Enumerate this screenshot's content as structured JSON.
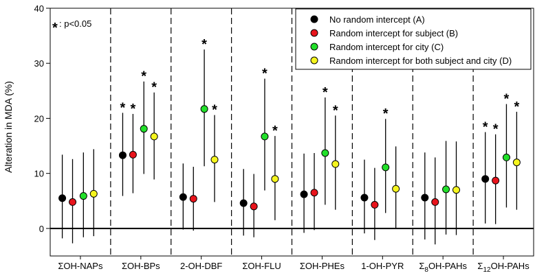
{
  "chart_data": {
    "type": "scatter",
    "ylabel": "Alteration in MDA (%)",
    "ylim": [
      -5,
      40
    ],
    "yticks": [
      0,
      10,
      20,
      30,
      40
    ],
    "grid": false,
    "legend_position": "top-right",
    "annotation": {
      "star": "*",
      "text": ": p<0.05"
    },
    "categories": [
      {
        "label": "ΣOH-NAPs",
        "main": "ΣOH-NAPs",
        "sub": "",
        "rest": ""
      },
      {
        "label": "ΣOH-BPs",
        "main": "ΣOH-BPs",
        "sub": "",
        "rest": ""
      },
      {
        "label": "2-OH-DBF",
        "main": "2-OH-DBF",
        "sub": "",
        "rest": ""
      },
      {
        "label": "ΣOH-FLU",
        "main": "ΣOH-FLU",
        "sub": "",
        "rest": ""
      },
      {
        "label": "ΣOH-PHEs",
        "main": "ΣOH-PHEs",
        "sub": "",
        "rest": ""
      },
      {
        "label": "1-OH-PYR",
        "main": "1-OH-PYR",
        "sub": "",
        "rest": ""
      },
      {
        "label": "Σ8OH-PAHs",
        "main": "Σ",
        "sub": "8",
        "rest": "OH-PAHs"
      },
      {
        "label": "Σ12OH-PAHs",
        "main": "Σ",
        "sub": "12",
        "rest": "OH-PAHs"
      }
    ],
    "series": [
      {
        "name": "No random intercept (A)",
        "color": "#000000",
        "values": [
          5.5,
          13.3,
          5.7,
          4.6,
          6.2,
          5.6,
          5.6,
          9.0
        ],
        "lower": [
          -1.8,
          5.9,
          -0.2,
          -1.3,
          -0.8,
          -0.9,
          -2.0,
          0.9
        ],
        "upper": [
          13.4,
          21.0,
          11.8,
          10.8,
          13.6,
          12.5,
          13.8,
          17.5
        ],
        "significant": [
          false,
          true,
          false,
          false,
          false,
          false,
          false,
          true
        ]
      },
      {
        "name": "Random intercept for subject (B)",
        "color": "#e8141c",
        "values": [
          4.8,
          13.4,
          5.4,
          4.0,
          6.5,
          4.3,
          4.8,
          8.7
        ],
        "lower": [
          -2.7,
          6.4,
          -0.4,
          -1.6,
          -0.3,
          -2.1,
          -2.9,
          0.8
        ],
        "upper": [
          12.6,
          20.8,
          11.2,
          9.9,
          13.7,
          11.0,
          12.9,
          17.1
        ],
        "significant": [
          false,
          true,
          false,
          false,
          false,
          false,
          false,
          true
        ]
      },
      {
        "name": "Random intercept for city (C)",
        "color": "#22e02a",
        "values": [
          5.9,
          18.1,
          21.7,
          16.7,
          13.7,
          11.1,
          7.1,
          12.9
        ],
        "lower": [
          -1.6,
          9.9,
          11.3,
          6.9,
          4.3,
          2.8,
          -1.1,
          3.8
        ],
        "upper": [
          13.8,
          26.7,
          32.5,
          27.2,
          23.8,
          19.9,
          15.9,
          22.6
        ],
        "significant": [
          false,
          true,
          true,
          true,
          true,
          true,
          false,
          true
        ]
      },
      {
        "name": "Random intercept for both subject and city (D)",
        "color": "#f5f51e",
        "values": [
          6.3,
          16.7,
          12.5,
          9.0,
          11.7,
          7.2,
          7.0,
          12.0
        ],
        "lower": [
          -1.4,
          8.9,
          4.8,
          1.5,
          3.4,
          0.1,
          -1.2,
          3.4
        ],
        "upper": [
          14.4,
          24.7,
          20.6,
          16.8,
          20.5,
          14.9,
          15.8,
          21.2
        ],
        "significant": [
          false,
          true,
          true,
          true,
          true,
          false,
          false,
          true
        ]
      }
    ]
  }
}
